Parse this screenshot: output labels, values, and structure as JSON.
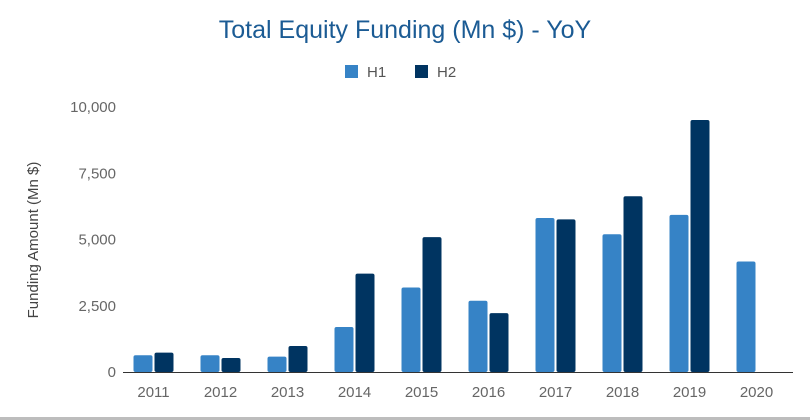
{
  "chart_data": {
    "type": "bar",
    "title": "Total Equity Funding (Mn $) - YoY",
    "xlabel": "",
    "ylabel": "Funding Amount (Mn $)",
    "ylim": [
      0,
      10000
    ],
    "yticks": [
      0,
      2500,
      5000,
      7500,
      10000
    ],
    "ytick_labels": [
      "0",
      "2,500",
      "5,000",
      "7,500",
      "10,000"
    ],
    "grid": false,
    "legend_position": "top-center",
    "categories": [
      "2011",
      "2012",
      "2013",
      "2014",
      "2015",
      "2016",
      "2017",
      "2018",
      "2019",
      "2020"
    ],
    "series": [
      {
        "name": "H1",
        "color": "#3683c6",
        "values": [
          630,
          630,
          580,
          1700,
          3190,
          2690,
          5810,
          5200,
          5930,
          4170
        ]
      },
      {
        "name": "H2",
        "color": "#003461",
        "values": [
          730,
          530,
          980,
          3710,
          5090,
          2220,
          5760,
          6630,
          9510,
          null
        ]
      }
    ]
  }
}
